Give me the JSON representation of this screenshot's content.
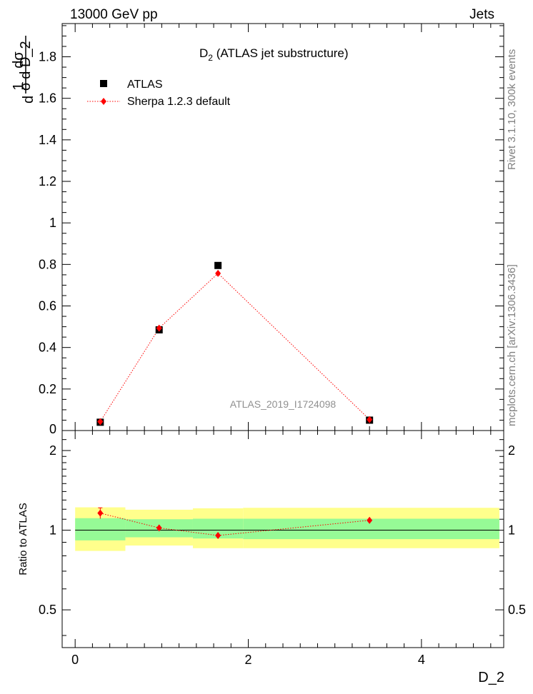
{
  "header": {
    "left": "13000 GeV pp",
    "right": "Jets"
  },
  "side_labels": {
    "rivet": "Rivet 3.1.10,  300k events",
    "mcplots": "mcplots.cern.ch [arXiv:1306.3436]"
  },
  "chart_data": [
    {
      "type": "scatter",
      "title_main": "D",
      "title_sub": "2",
      "title_rest": " (ATLAS jet substructure)",
      "watermark": "ATLAS_2019_I1724098",
      "ylabel": {
        "top_num": "1",
        "top_den": "σ",
        "d1": "d",
        "frac_num": "dσ",
        "frac_den": "d D_2"
      },
      "xlim": [
        -0.15,
        4.95
      ],
      "ylim": [
        0.0,
        1.96
      ],
      "yticks": [
        0.2,
        0.4,
        0.6,
        0.8,
        1.0,
        1.2,
        1.4,
        1.6,
        1.8
      ],
      "ytick_labels": [
        "0.2",
        "0.4",
        "0.6",
        "0.8",
        "1",
        "1.2",
        "1.4",
        "1.6",
        "1.8"
      ],
      "bottom_tick_label": "0",
      "legend": {
        "placement": "top-left",
        "entries": [
          "ATLAS",
          "Sherpa 1.2.3 default"
        ]
      },
      "series": [
        {
          "name": "ATLAS",
          "marker": "square",
          "color": "#000000",
          "x": [
            0.29,
            0.97,
            1.65,
            3.4
          ],
          "y": [
            0.04,
            0.485,
            0.795,
            0.05
          ]
        },
        {
          "name": "Sherpa 1.2.3 default",
          "marker": "diamond",
          "color": "#ff0000",
          "x": [
            0.29,
            0.97,
            1.65,
            3.4
          ],
          "y": [
            0.043,
            0.493,
            0.757,
            0.053
          ]
        }
      ]
    },
    {
      "type": "scatter",
      "ylabel": "Ratio to ATLAS",
      "xlabel": "D_2",
      "xlim": [
        -0.15,
        4.95
      ],
      "ylim": [
        0.36,
        2.38
      ],
      "yscale": "log",
      "yticks": [
        0.5,
        1,
        2
      ],
      "ytick_labels": [
        "0.5",
        "1",
        "2"
      ],
      "xticks": [
        0,
        2,
        4
      ],
      "xtick_labels": [
        "0",
        "2",
        "4"
      ],
      "bin_edges": [
        0.0,
        0.58,
        1.36,
        1.94,
        4.9
      ],
      "band_outer": [
        [
          0.835,
          1.22
        ],
        [
          0.875,
          1.195
        ],
        [
          0.855,
          1.21
        ],
        [
          0.855,
          1.215
        ]
      ],
      "band_inner": [
        [
          0.915,
          1.11
        ],
        [
          0.94,
          1.1
        ],
        [
          0.93,
          1.105
        ],
        [
          0.925,
          1.105
        ]
      ],
      "band_colors": {
        "outer": "#ffff8c",
        "inner": "#96fa96"
      },
      "series": [
        {
          "name": "Sherpa 1.2.3 default",
          "color": "#ff0000",
          "x": [
            0.29,
            0.97,
            1.65,
            3.4
          ],
          "y": [
            1.16,
            1.02,
            0.955,
            1.09
          ],
          "yerr": [
            0.055,
            0.0,
            0.0,
            0.0
          ]
        }
      ]
    }
  ]
}
